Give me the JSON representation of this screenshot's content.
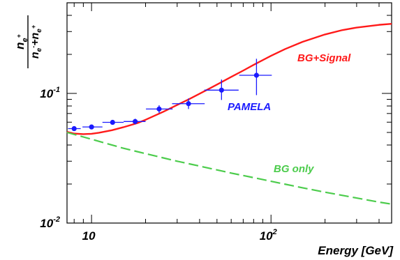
{
  "chart_data": {
    "type": "line",
    "xscale": "log",
    "yscale": "log",
    "xlim": [
      7.3,
      470
    ],
    "ylim": [
      0.01,
      0.5
    ],
    "xlabel": "Energy [GeV]",
    "ylabel": {
      "numerator": "n",
      "numerator_sub": "e",
      "numerator_sup": "+",
      "den_a": "n",
      "den_a_sub": "e",
      "den_a_sup": "-",
      "den_plus": "+",
      "den_b": "n",
      "den_b_sub": "e",
      "den_b_sup": "+"
    },
    "x_ticks": [
      {
        "value": 10,
        "label": "10",
        "sup": ""
      },
      {
        "value": 100,
        "label": "10",
        "sup": "2"
      }
    ],
    "y_ticks": [
      {
        "value": 0.01,
        "label": "10",
        "sup": "-2"
      },
      {
        "value": 0.1,
        "label": "10",
        "sup": "-1"
      }
    ],
    "grid": false,
    "series": [
      {
        "name": "BG+Signal",
        "color": "#ff1a1a",
        "style": "solid",
        "x": [
          7.3,
          8,
          9,
          10,
          11,
          13,
          15,
          18,
          20,
          25,
          30,
          35,
          40,
          50,
          60,
          70,
          80,
          100,
          120,
          150,
          200,
          250,
          300,
          400,
          470
        ],
        "y": [
          0.0505,
          0.049,
          0.0485,
          0.0488,
          0.0497,
          0.052,
          0.0548,
          0.059,
          0.0626,
          0.072,
          0.0815,
          0.0904,
          0.0994,
          0.117,
          0.134,
          0.15,
          0.166,
          0.195,
          0.22,
          0.25,
          0.285,
          0.308,
          0.322,
          0.338,
          0.344
        ]
      },
      {
        "name": "BG only",
        "color": "#4ccc4c",
        "style": "dashed",
        "x": [
          7.3,
          10,
          15,
          20,
          30,
          40,
          60,
          80,
          100,
          150,
          200,
          300,
          400,
          470
        ],
        "y": [
          0.05,
          0.0443,
          0.0378,
          0.0343,
          0.03,
          0.0275,
          0.0243,
          0.0224,
          0.021,
          0.0187,
          0.0173,
          0.0156,
          0.0145,
          0.014
        ]
      },
      {
        "name": "PAMELA",
        "color": "#1a1aff",
        "style": "points",
        "points": [
          {
            "x": 8.0,
            "y": 0.0535,
            "xlo": 7.4,
            "xhi": 8.7,
            "ylo": 0.052,
            "yhi": 0.0551
          },
          {
            "x": 10.0,
            "y": 0.0551,
            "xlo": 8.9,
            "xhi": 11.5,
            "ylo": 0.0533,
            "yhi": 0.0568
          },
          {
            "x": 13.1,
            "y": 0.0598,
            "xlo": 11.5,
            "xhi": 15.1,
            "ylo": 0.0576,
            "yhi": 0.0616
          },
          {
            "x": 17.5,
            "y": 0.0607,
            "xlo": 15.1,
            "xhi": 20.0,
            "ylo": 0.0578,
            "yhi": 0.0638
          },
          {
            "x": 23.8,
            "y": 0.0758,
            "xlo": 20.1,
            "xhi": 28.3,
            "ylo": 0.0705,
            "yhi": 0.081
          },
          {
            "x": 34.7,
            "y": 0.0833,
            "xlo": 28.1,
            "xhi": 42.7,
            "ylo": 0.0758,
            "yhi": 0.0915
          },
          {
            "x": 53.0,
            "y": 0.106,
            "xlo": 42.5,
            "xhi": 66.0,
            "ylo": 0.089,
            "yhi": 0.128
          },
          {
            "x": 83.0,
            "y": 0.138,
            "xlo": 66.5,
            "xhi": 101.0,
            "ylo": 0.097,
            "yhi": 0.185
          }
        ]
      }
    ],
    "annotations": [
      {
        "text": "BG+Signal",
        "color": "#ff1a1a"
      },
      {
        "text": "PAMELA",
        "color": "#1a1aff"
      },
      {
        "text": "BG only",
        "color": "#4ccc4c"
      }
    ]
  }
}
